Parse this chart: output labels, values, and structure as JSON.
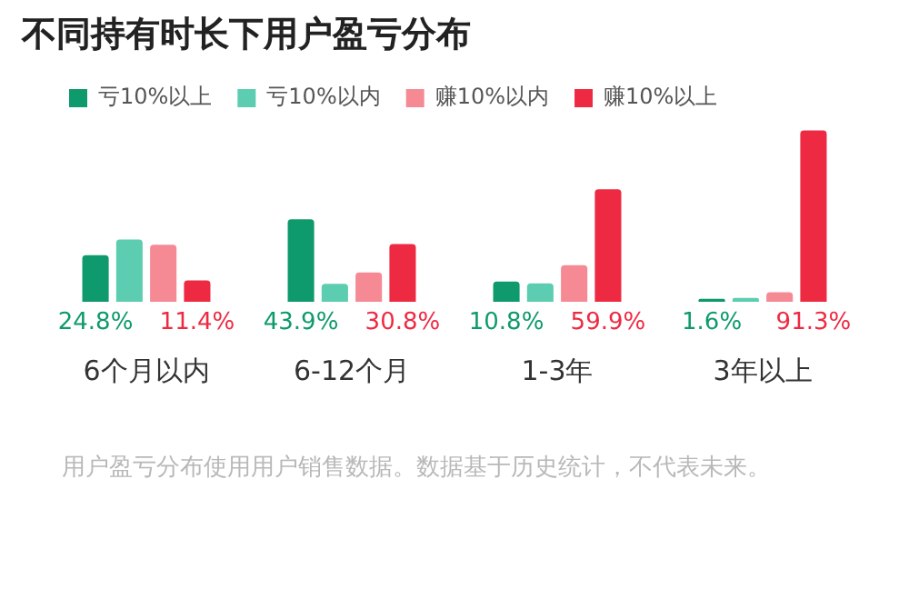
{
  "chart_data": {
    "type": "bar",
    "title": "不同持有时长下用户盈亏分布",
    "categories": [
      "6个月以内",
      "6-12个月",
      "1-3年",
      "3年以上"
    ],
    "series": [
      {
        "name": "亏10%以上",
        "color": "#0e9a6c",
        "values": [
          24.8,
          43.9,
          10.8,
          1.6
        ],
        "value_labels": [
          "24.8%",
          "43.9%",
          "10.8%",
          "1.6%"
        ]
      },
      {
        "name": "亏10%以内",
        "color": "#5ccdb0",
        "values": [
          33.2,
          9.6,
          9.8,
          2.0
        ]
      },
      {
        "name": "赚10%以内",
        "color": "#f58a95",
        "values": [
          30.4,
          15.6,
          19.5,
          5.1
        ]
      },
      {
        "name": "赚10%以上",
        "color": "#ee2a42",
        "values": [
          11.4,
          30.8,
          59.9,
          91.3
        ],
        "value_labels": [
          "11.4%",
          "30.8%",
          "59.9%",
          "91.3%"
        ]
      }
    ],
    "ylim": [
      0,
      93
    ],
    "tick_labels": "x",
    "legend": "top left",
    "annotations": [
      "用户盈亏分布使用用户销售数据。数据基于历史统计，不代表未来。"
    ]
  }
}
